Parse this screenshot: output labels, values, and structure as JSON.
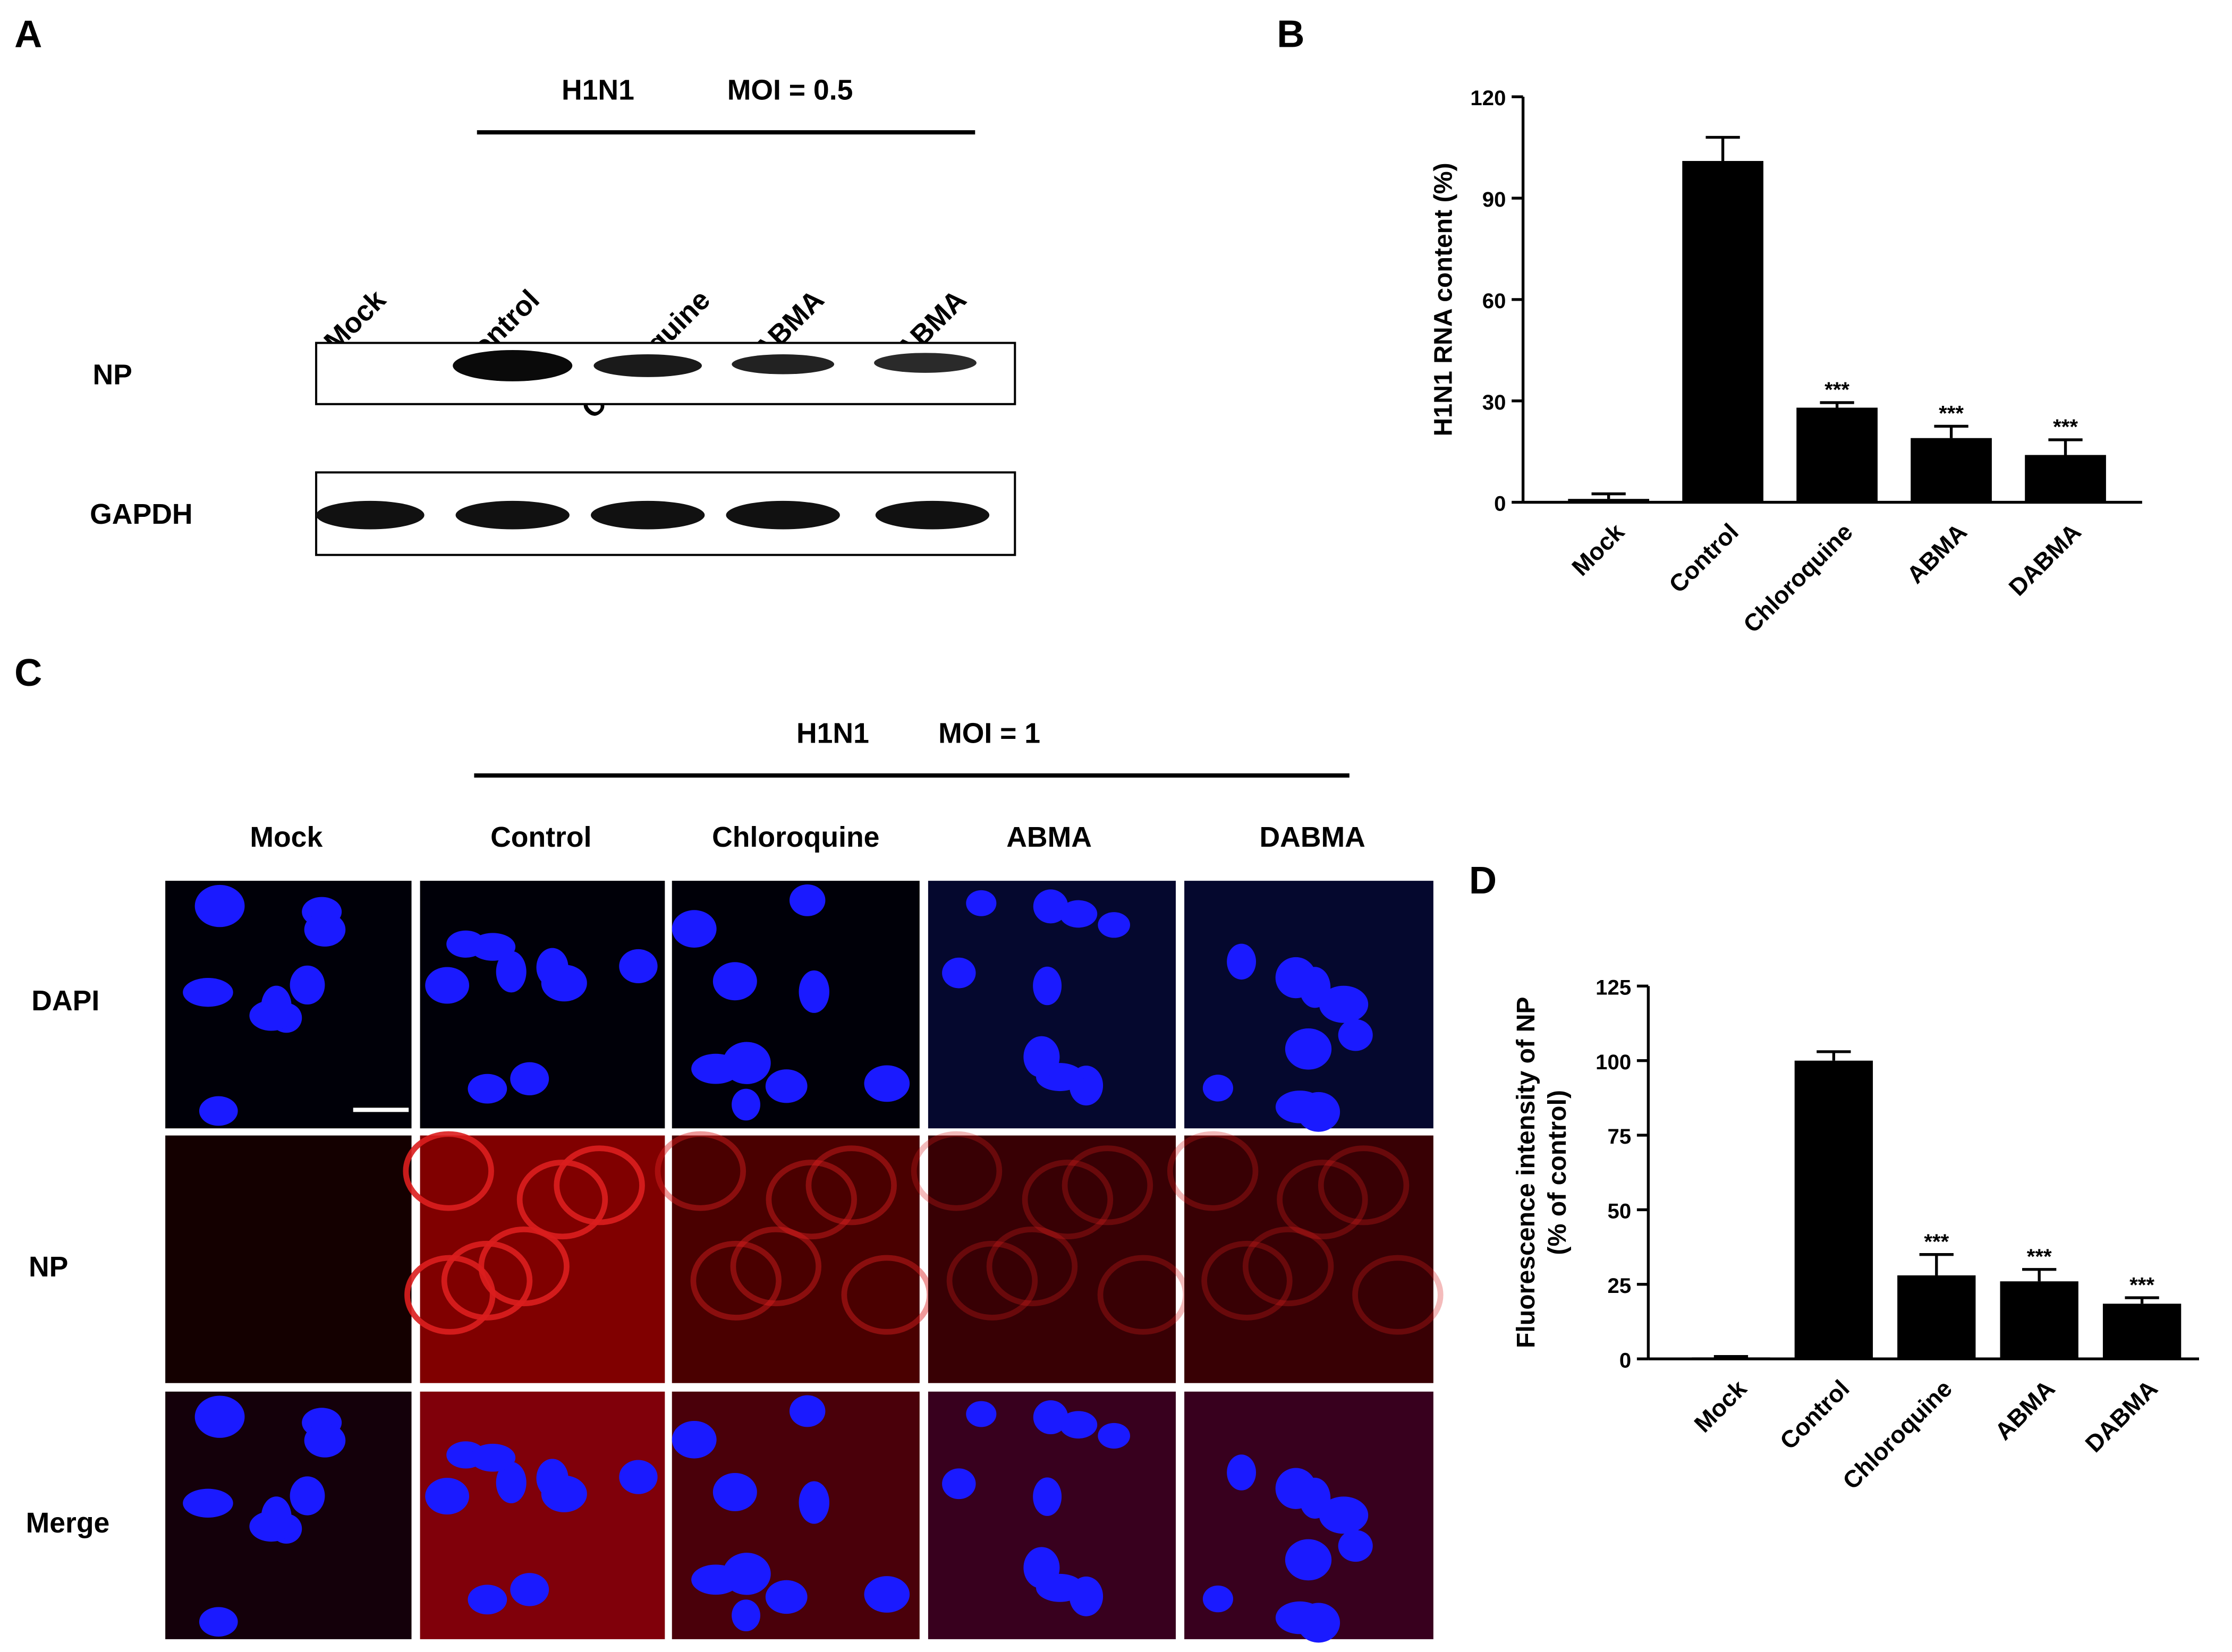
{
  "panel_labels": [
    "A",
    "B",
    "C",
    "D"
  ],
  "blot": {
    "treatment": "H1N1",
    "moi": "MOI = 0.5",
    "lanes": [
      "Mock",
      "Control",
      "Chloroquine",
      "ABMA",
      "DABMA"
    ],
    "rows": [
      "NP",
      "GAPDH"
    ]
  },
  "microscopy": {
    "treatment": "H1N1",
    "moi": "MOI = 1",
    "columns": [
      "Mock",
      "Control",
      "Chloroquine",
      "ABMA",
      "DABMA"
    ],
    "rows": [
      "DAPI",
      "NP",
      "Merge"
    ]
  },
  "chart_data": [
    {
      "type": "bar",
      "ylabel": [
        "H1N1 RNA content (%)"
      ],
      "categories": [
        "Mock",
        "Control",
        "Chloroquine",
        "ABMA",
        "DABMA"
      ],
      "values": [
        1,
        101,
        28,
        19,
        14
      ],
      "errors": [
        1.5,
        7,
        1.5,
        3.5,
        4.5
      ],
      "annotations": [
        null,
        null,
        "***",
        "***",
        "***"
      ],
      "color": "#000000",
      "ylim": [
        0,
        120
      ],
      "yticks": [
        0,
        30,
        60,
        90,
        120
      ]
    },
    {
      "type": "bar",
      "ylabel": [
        "Fluorescence intensity of NP",
        "(% of control)"
      ],
      "categories": [
        "Mock",
        "Control",
        "Chloroquine",
        "ABMA",
        "DABMA"
      ],
      "values": [
        0.5,
        100,
        28,
        26,
        18.5
      ],
      "errors": [
        0.3,
        3,
        7,
        4,
        2
      ],
      "annotations": [
        null,
        null,
        "***",
        "***",
        "***"
      ],
      "color": "#000000",
      "ylim": [
        0,
        125
      ],
      "yticks": [
        0,
        25,
        50,
        75,
        100,
        125
      ]
    }
  ]
}
